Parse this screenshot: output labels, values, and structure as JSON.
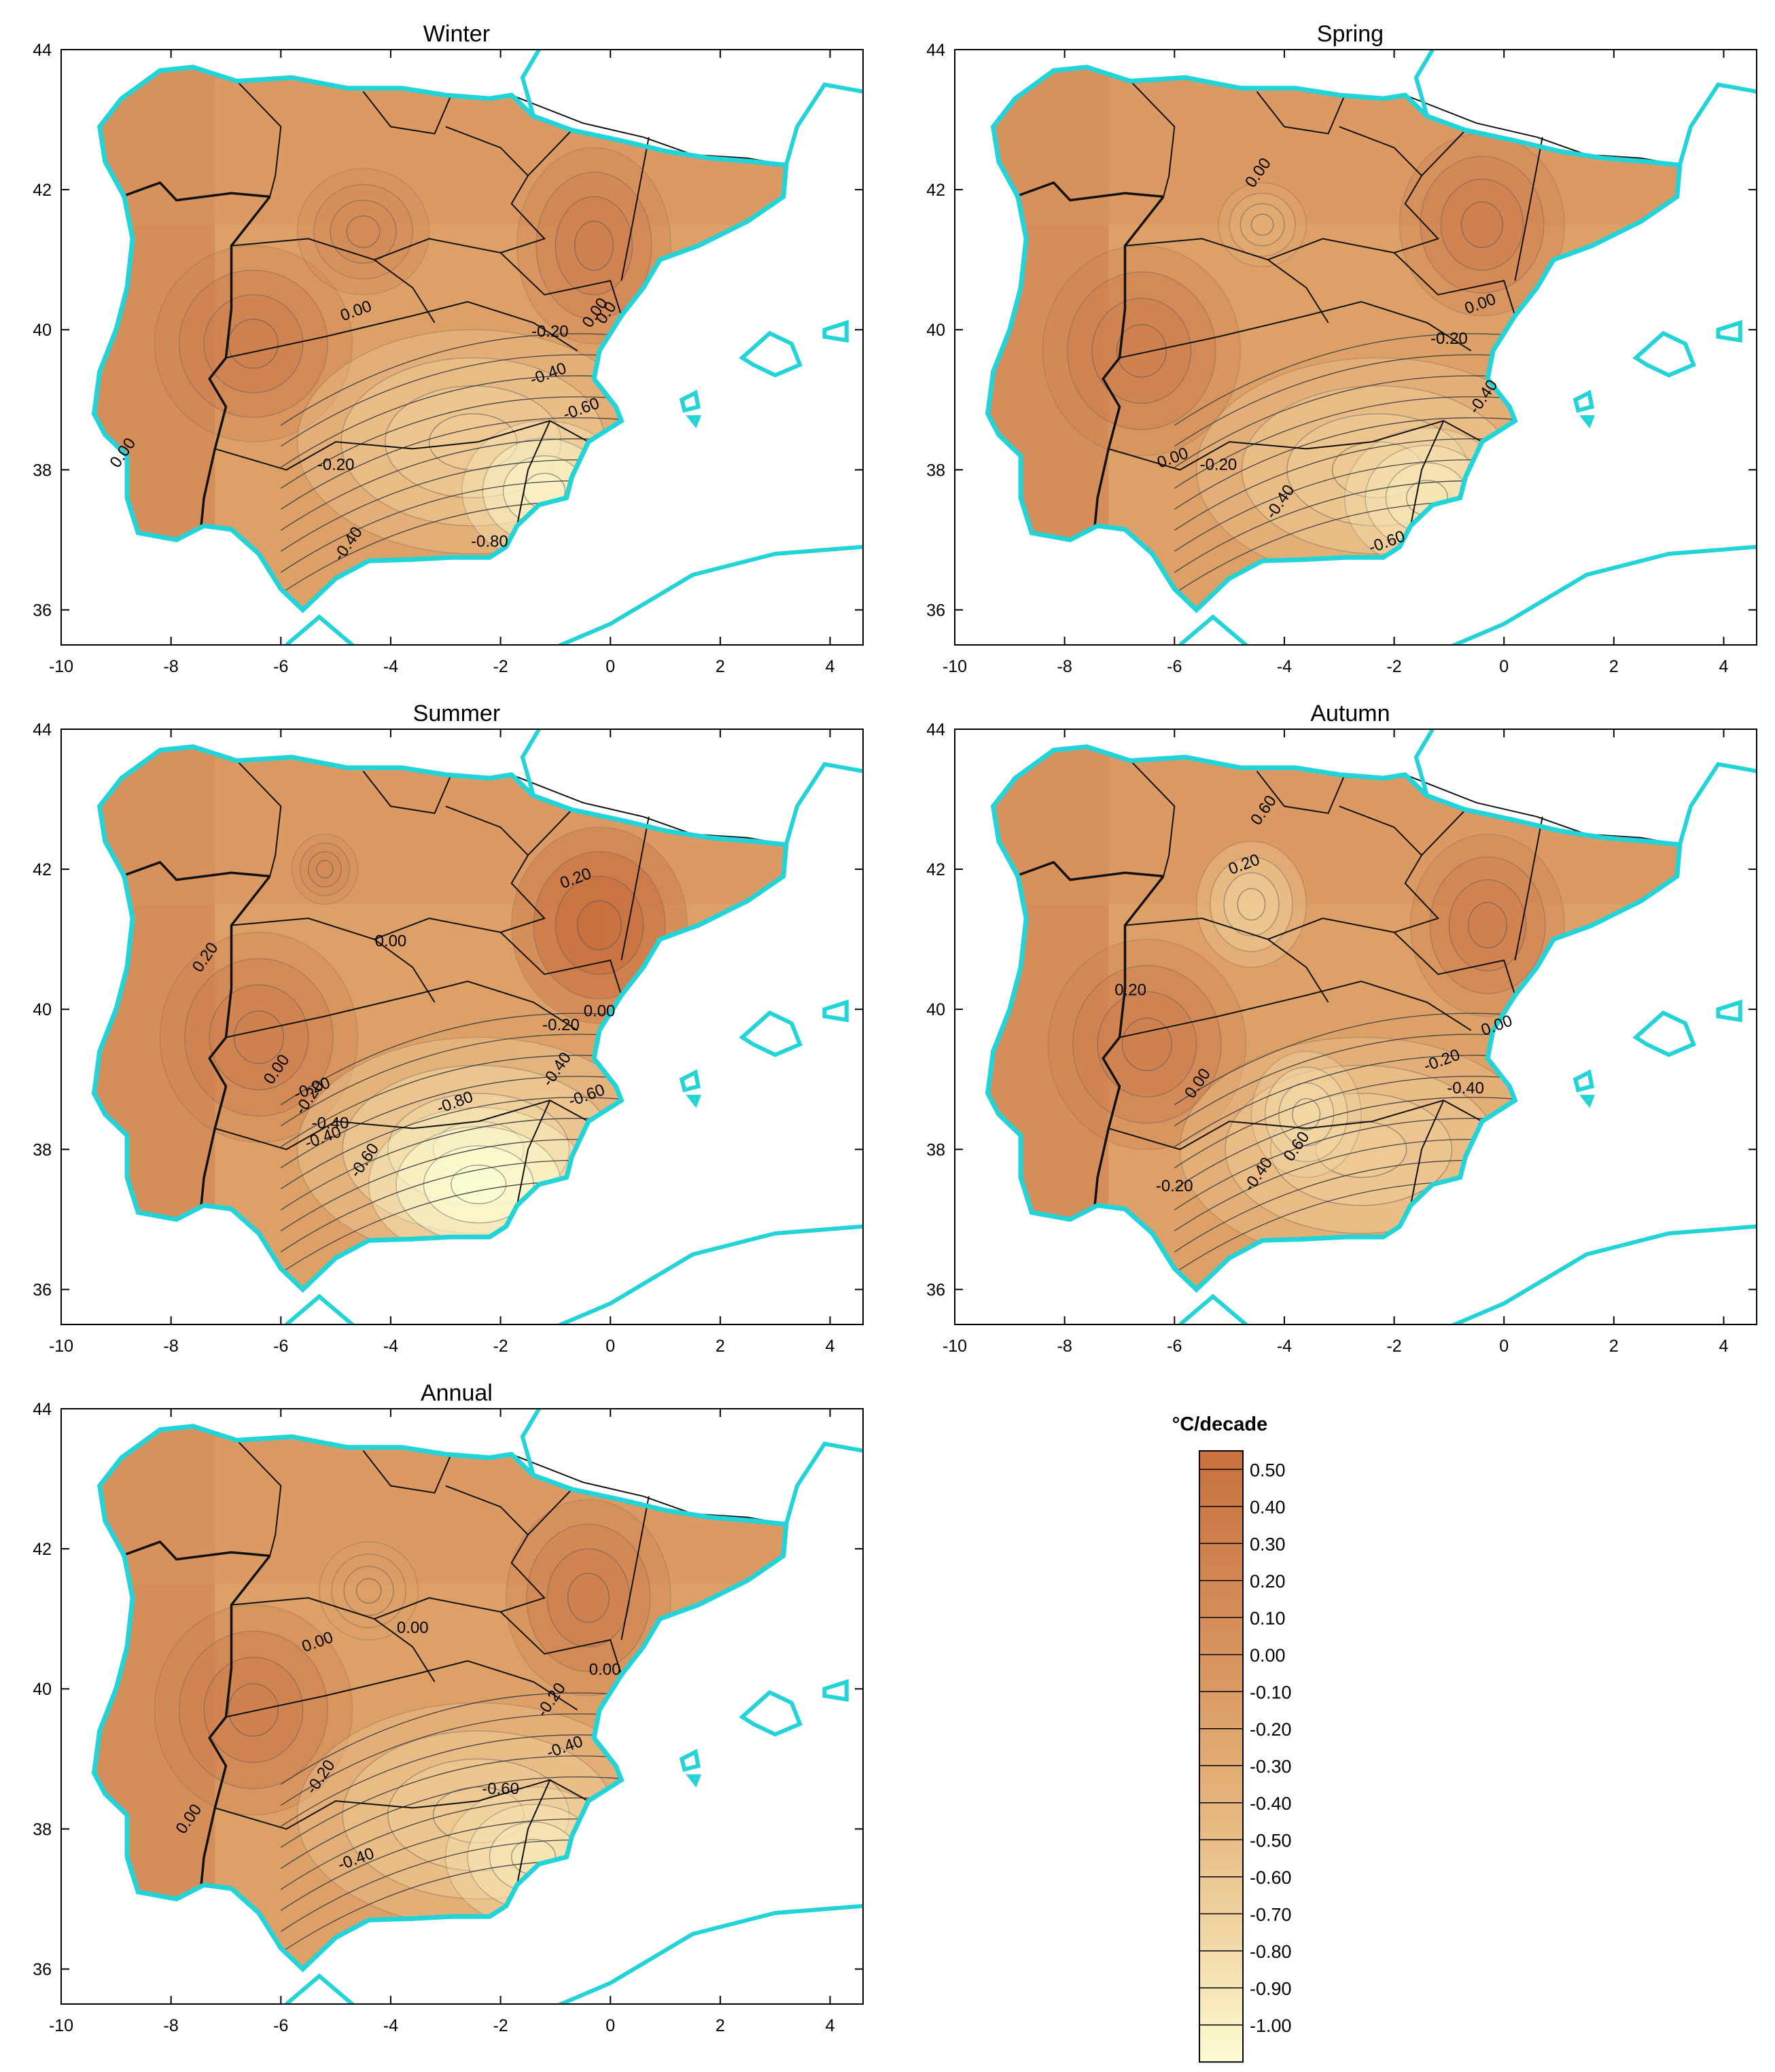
{
  "colors": {
    "coast": "#22d3d8",
    "border": "#111111",
    "frame": "#000000",
    "scale": [
      "#fcfcd2",
      "#f9f0c4",
      "#f7e5b5",
      "#f3d8a5",
      "#efca95",
      "#e8bb84",
      "#e3ad74",
      "#dda067",
      "#d89460",
      "#d48b58",
      "#cf8150",
      "#c8713f"
    ]
  },
  "axes": {
    "x_ticks": [
      "-10",
      "-8",
      "-6",
      "-4",
      "-2",
      "0",
      "2",
      "4"
    ],
    "y_ticks": [
      "44",
      "42",
      "40",
      "38",
      "36"
    ]
  },
  "panels": [
    {
      "title": "Winter",
      "labels": [
        "0.00",
        "0.00",
        "-0.20",
        "-0.40",
        "-0.60",
        "-0.20",
        "0.00",
        "-0.40",
        "-0.80",
        "0.0"
      ]
    },
    {
      "title": "Spring",
      "labels": [
        "0.00",
        "0.00",
        "-0.20",
        "-0.40",
        "0.00",
        "-0.20",
        "-0.40",
        "-0.60"
      ]
    },
    {
      "title": "Summer",
      "labels": [
        "0.20",
        "0.20",
        "0.00",
        "0.00",
        "-0.20",
        "-0.40",
        "-0.60",
        "-0.80",
        "-0.20",
        "-0.40",
        "-0.60",
        "0.00",
        "-0.20",
        "-0.40"
      ]
    },
    {
      "title": "Autumn",
      "labels": [
        "0.60",
        "0.20",
        "0.20",
        "0.00",
        "0.00",
        "-0.20",
        "-0.40",
        "-0.20",
        "-0.40",
        "0.60"
      ]
    },
    {
      "title": "Annual",
      "labels": [
        "0.00",
        "0.00",
        "0.00",
        "-0.20",
        "-0.40",
        "-0.60",
        "-0.20",
        "-0.40",
        "0.00"
      ]
    }
  ],
  "legend": {
    "title": "°C/decade",
    "labels": [
      "0.50",
      "0.40",
      "0.30",
      "0.20",
      "0.10",
      "0.00",
      "-0.10",
      "-0.20",
      "-0.30",
      "-0.40",
      "-0.50",
      "-0.60",
      "-0.70",
      "-0.80",
      "-0.90",
      "-1.00"
    ]
  }
}
